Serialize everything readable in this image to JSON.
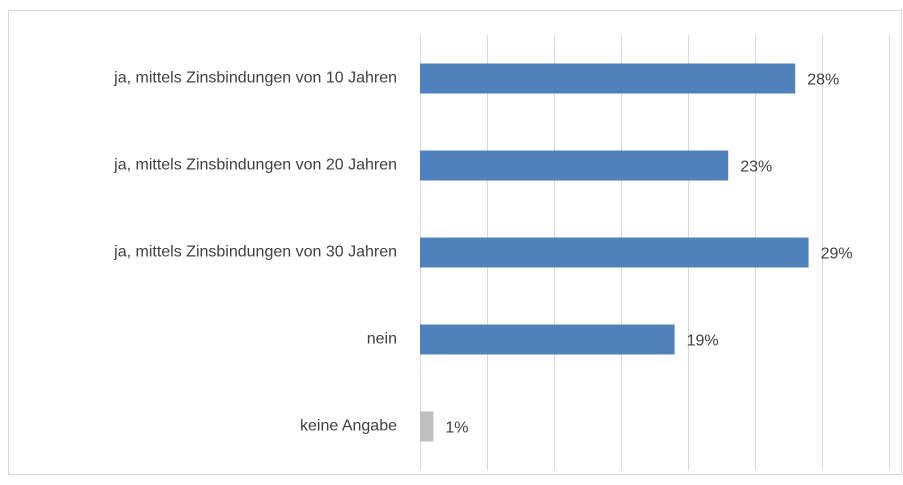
{
  "chart_data": {
    "type": "hbar",
    "categories": [
      "ja, mittels Zinsbindungen von 10 Jahren",
      "ja, mittels Zinsbindungen von 20 Jahren",
      "ja, mittels Zinsbindungen von 30 Jahren",
      "nein",
      "keine Angabe"
    ],
    "values": [
      28,
      23,
      29,
      19,
      1
    ],
    "value_labels": [
      "28%",
      "23%",
      "29%",
      "19%",
      "1%"
    ],
    "colors": [
      "#4f81bd",
      "#4f81bd",
      "#4f81bd",
      "#4f81bd",
      "#bfbfbf"
    ],
    "xlim": [
      0,
      35
    ],
    "xticks": [
      0,
      5,
      10,
      15,
      20,
      25,
      30,
      35
    ],
    "grid": true
  }
}
